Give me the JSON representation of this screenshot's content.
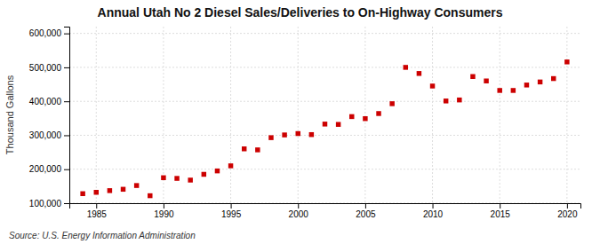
{
  "chart_data": {
    "type": "scatter",
    "title": "Annual Utah No 2 Diesel Sales/Deliveries to On-Highway Consumers",
    "ylabel": "Thousand Gallons",
    "annotations": [
      "Source: U.S. Energy Information Administration"
    ],
    "x": [
      1984,
      1985,
      1986,
      1987,
      1988,
      1989,
      1990,
      1991,
      1992,
      1993,
      1994,
      1995,
      1996,
      1997,
      1998,
      1999,
      2000,
      2001,
      2002,
      2003,
      2004,
      2005,
      2006,
      2007,
      2008,
      2009,
      2010,
      2011,
      2012,
      2013,
      2014,
      2015,
      2016,
      2017,
      2018,
      2019,
      2020
    ],
    "values": [
      128000,
      132000,
      137000,
      141000,
      152000,
      122000,
      175000,
      173000,
      168000,
      185000,
      195000,
      210000,
      260000,
      257000,
      293000,
      301000,
      305000,
      302000,
      333000,
      332000,
      355000,
      349000,
      364000,
      393000,
      500000,
      482000,
      445000,
      401000,
      404000,
      473000,
      460000,
      432000,
      432000,
      448000,
      457000,
      467000,
      516000
    ],
    "color": "#cc0000",
    "marker": "square",
    "xlim": [
      1983,
      2021
    ],
    "ylim": [
      100000,
      620000
    ],
    "xticks": [
      1985,
      1990,
      1995,
      2000,
      2005,
      2010,
      2015,
      2020
    ],
    "yticks": [
      {
        "value": 100000,
        "label": "100,000"
      },
      {
        "value": 200000,
        "label": "200,000"
      },
      {
        "value": 300000,
        "label": "300,000"
      },
      {
        "value": 400000,
        "label": "400,000"
      },
      {
        "value": 500000,
        "label": "500,000"
      },
      {
        "value": 600000,
        "label": "600,000"
      }
    ],
    "grid": true
  }
}
